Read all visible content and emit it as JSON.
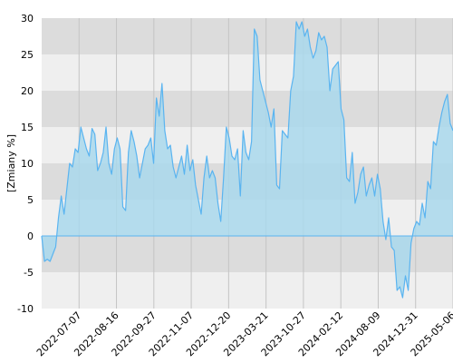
{
  "chart_data": {
    "type": "area",
    "title": "",
    "xlabel": "",
    "ylabel": "[Zmiany %]",
    "ylim": [
      -10,
      30
    ],
    "y_ticks": [
      -10,
      -5,
      0,
      5,
      10,
      15,
      20,
      25,
      30
    ],
    "x_tick_labels": [
      "2022-07-07",
      "2022-08-16",
      "2022-09-27",
      "2022-11-07",
      "2022-12-20",
      "2023-03-21",
      "2023-10-27",
      "2024-02-12",
      "2024-08-09",
      "2024-12-31",
      "2025-05-06"
    ],
    "grid": true,
    "legend": "none",
    "colors": {
      "line": "#5ab4f0",
      "fill": "#a9d8ec",
      "band_dark": "#dcdcdc",
      "band_light": "#efefef",
      "zero_line": "#5ab4f0"
    },
    "series": [
      {
        "values": [
          0.0,
          -3.5,
          -3.2,
          -3.5,
          -2.5,
          -1.5,
          2.5,
          5.5,
          3.0,
          6.5,
          10.0,
          9.5,
          12.0,
          11.5,
          15.0,
          13.5,
          12.0,
          11.0,
          14.8,
          14.0,
          9.0,
          10.0,
          11.5,
          15.0,
          10.0,
          8.5,
          12.0,
          13.5,
          12.0,
          4.0,
          3.5,
          11.5,
          14.5,
          13.0,
          11.0,
          8.0,
          10.0,
          12.0,
          12.5,
          13.5,
          10.0,
          19.0,
          16.5,
          21.0,
          14.5,
          12.0,
          12.5,
          9.5,
          8.0,
          9.5,
          11.0,
          8.5,
          12.5,
          9.0,
          10.5,
          7.0,
          5.0,
          3.0,
          8.0,
          11.0,
          8.0,
          9.0,
          8.0,
          4.5,
          2.0,
          8.0,
          15.0,
          13.5,
          11.0,
          10.5,
          12.0,
          5.5,
          14.5,
          11.5,
          10.5,
          13.0,
          28.5,
          27.5,
          21.5,
          20.0,
          18.5,
          17.0,
          15.0,
          17.5,
          7.0,
          6.5,
          14.5,
          14.0,
          13.5,
          20.0,
          22.0,
          29.5,
          28.5,
          29.5,
          27.5,
          28.5,
          26.0,
          24.5,
          25.5,
          28.0,
          27.0,
          27.5,
          26.0,
          20.0,
          23.0,
          23.5,
          24.0,
          17.5,
          16.0,
          8.0,
          7.5,
          11.5,
          4.5,
          6.0,
          8.5,
          9.5,
          5.5,
          7.0,
          8.0,
          5.5,
          8.5,
          6.5,
          2.0,
          -0.5,
          2.5,
          -1.5,
          -2.0,
          -7.5,
          -7.0,
          -8.5,
          -5.5,
          -7.5,
          -1.0,
          1.0,
          2.0,
          1.5,
          4.5,
          2.5,
          7.5,
          6.5,
          13.0,
          12.5,
          15.0,
          17.0,
          18.5,
          19.5,
          15.5,
          14.5
        ]
      }
    ]
  }
}
